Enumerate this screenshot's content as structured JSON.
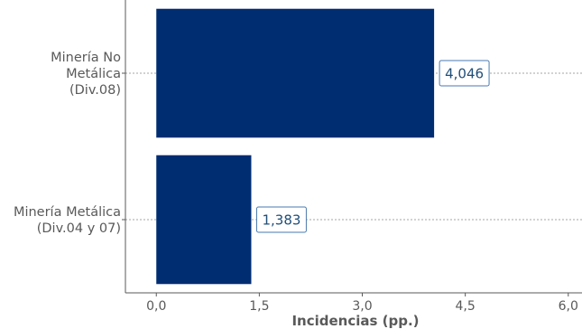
{
  "chart_data": {
    "type": "bar",
    "orientation": "horizontal",
    "categories": [
      [
        "Minería No",
        "Metálica",
        "(Div.08)"
      ],
      [
        "Minería Metálica",
        "(Div.04 y 07)"
      ]
    ],
    "values": [
      4.046,
      1.383
    ],
    "data_labels": [
      "4,046",
      "1,383"
    ],
    "xlabel": "Incidencias (pp.)",
    "xlim": [
      -0.45,
      6.2
    ],
    "xticks": [
      0.0,
      1.5,
      3.0,
      4.5,
      6.0
    ],
    "xtick_labels": [
      "0,0",
      "1,5",
      "3,0",
      "4,5",
      "6,0"
    ],
    "grid": "dotted horizontal lines at each category",
    "colors": {
      "bar": "#002d72",
      "label_text": "#1f4e79",
      "label_border": "#4a7ab0",
      "axis": "#595959",
      "grid": "#a6a6a6"
    }
  }
}
